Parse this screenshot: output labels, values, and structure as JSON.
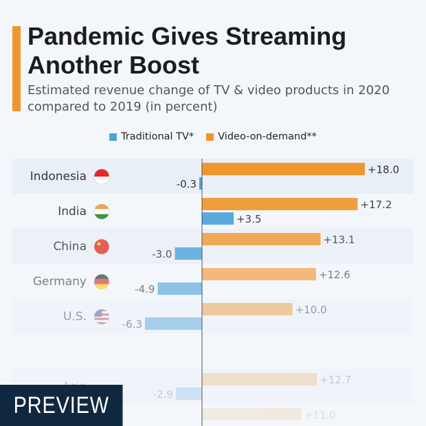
{
  "title": "Pandemic Gives Streaming Another Boost",
  "subtitle": "Estimated revenue change of TV & video products in 2020 compared to 2019 (in percent)",
  "preview_label": "PREVIEW",
  "colors": {
    "tv": "#4fa3db",
    "vod": "#f0962e",
    "accent": "#f0962e"
  },
  "chart_data": {
    "type": "bar",
    "orientation": "horizontal",
    "categories": [
      "Indonesia",
      "India",
      "China",
      "Germany",
      "U.S.",
      "Asia",
      ""
    ],
    "series": [
      {
        "name": "Traditional TV*",
        "values": [
          -0.3,
          3.5,
          -3.0,
          -4.9,
          -6.3,
          -2.9,
          null
        ],
        "labels": [
          "-0.3",
          "+3.5",
          "-3.0",
          "-4.9",
          "-6.3",
          "-2.9",
          ""
        ]
      },
      {
        "name": "Video-on-demand**",
        "values": [
          18.0,
          17.2,
          13.1,
          12.6,
          10.0,
          12.7,
          11.0
        ],
        "labels": [
          "+18.0",
          "+17.2",
          "+13.1",
          "+12.6",
          "+10.0",
          "+12.7",
          "+11.0"
        ]
      }
    ],
    "flags": [
      "indonesia",
      "india",
      "china",
      "germany",
      "usa",
      "",
      ""
    ],
    "legend_position": "top"
  }
}
